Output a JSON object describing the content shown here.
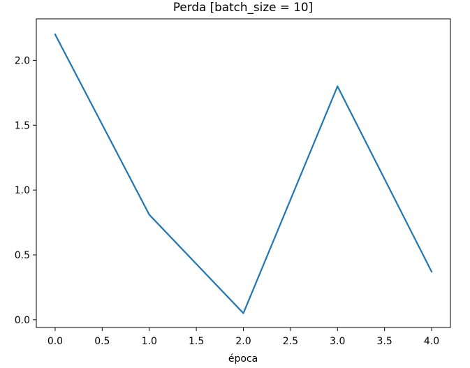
{
  "chart_data": {
    "type": "line",
    "title": "Perda [batch_size = 10]",
    "xlabel": "época",
    "ylabel": "",
    "xlim": [
      -0.2,
      4.2
    ],
    "ylim": [
      -0.06,
      2.32
    ],
    "x_ticks": [
      0.0,
      0.5,
      1.0,
      1.5,
      2.0,
      2.5,
      3.0,
      3.5,
      4.0
    ],
    "x_tick_labels": [
      "0.0",
      "0.5",
      "1.0",
      "1.5",
      "2.0",
      "2.5",
      "3.0",
      "3.5",
      "4.0"
    ],
    "y_ticks": [
      0.0,
      0.5,
      1.0,
      1.5,
      2.0
    ],
    "y_tick_labels": [
      "0.0",
      "0.5",
      "1.0",
      "1.5",
      "2.0"
    ],
    "grid": false,
    "legend": "none",
    "series": [
      {
        "color": "#1f77b4",
        "x": [
          0,
          1,
          2,
          3,
          4
        ],
        "y": [
          2.2,
          0.81,
          0.05,
          1.8,
          0.37
        ]
      }
    ]
  }
}
